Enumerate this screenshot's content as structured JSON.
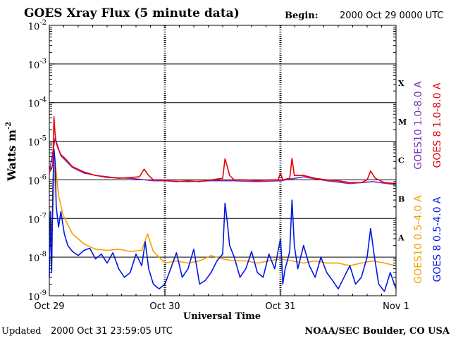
{
  "header": {
    "title": "GOES Xray Flux (5 minute data)",
    "begin_label": "Begin:",
    "begin_value": "2000 Oct 29 0000 UTC"
  },
  "footer": {
    "updated_label": "Updated",
    "updated_value": "2000 Oct 31 23:59:05 UTC",
    "credit": "NOAA/SEC Boulder, CO USA"
  },
  "chart_data": {
    "type": "line",
    "title": "GOES Xray Flux (5 minute data)",
    "xlabel": "Universal Time",
    "ylabel": "Watts m",
    "ylabel_sup": "-2",
    "y_scale": "log",
    "ylim": [
      1e-09,
      0.01
    ],
    "y_ticks": [
      {
        "base": "10",
        "exp": "-9",
        "value": 1e-09
      },
      {
        "base": "10",
        "exp": "-8",
        "value": 1e-08
      },
      {
        "base": "10",
        "exp": "-7",
        "value": 1e-07
      },
      {
        "base": "10",
        "exp": "-6",
        "value": 1e-06
      },
      {
        "base": "10",
        "exp": "-5",
        "value": 1e-05
      },
      {
        "base": "10",
        "exp": "-4",
        "value": 0.0001
      },
      {
        "base": "10",
        "exp": "-3",
        "value": 0.001
      },
      {
        "base": "10",
        "exp": "-2",
        "value": 0.01
      }
    ],
    "xlim_days": [
      0,
      3
    ],
    "x_ticks": [
      {
        "label": "Oct 29",
        "day": 0
      },
      {
        "label": "Oct 30",
        "day": 1
      },
      {
        "label": "Oct 31",
        "day": 2
      },
      {
        "label": "Nov 1",
        "day": 3
      }
    ],
    "flare_classes": [
      {
        "label": "X",
        "value": 0.00032
      },
      {
        "label": "M",
        "value": 3.2e-05
      },
      {
        "label": "C",
        "value": 3.2e-06
      },
      {
        "label": "B",
        "value": 3.2e-07
      },
      {
        "label": "A",
        "value": 3.2e-08
      }
    ],
    "grid": true,
    "legend_placement": "right",
    "series": [
      {
        "name": "GOES 8 1.0-8.0 A",
        "color": "#e8000b",
        "x": [
          0,
          0.015,
          0.03,
          0.04,
          0.05,
          0.06,
          0.08,
          0.1,
          0.14,
          0.2,
          0.3,
          0.4,
          0.5,
          0.6,
          0.7,
          0.78,
          0.82,
          0.86,
          0.9,
          0.98,
          1.0,
          1.02,
          1.1,
          1.2,
          1.3,
          1.4,
          1.5,
          1.52,
          1.54,
          1.56,
          1.6,
          1.7,
          1.8,
          1.9,
          1.98,
          2.0,
          2.02,
          2.08,
          2.1,
          2.12,
          2.2,
          2.3,
          2.4,
          2.5,
          2.6,
          2.7,
          2.75,
          2.78,
          2.82,
          2.9,
          3.0
        ],
        "y": [
          1.6e-06,
          1.8e-06,
          2.5e-06,
          4.3e-05,
          1.5e-05,
          9e-06,
          6e-06,
          4.5e-06,
          3.5e-06,
          2.2e-06,
          1.6e-06,
          1.3e-06,
          1.2e-06,
          1.1e-06,
          1.15e-06,
          1.2e-06,
          1.9e-06,
          1.3e-06,
          1e-06,
          1e-06,
          1e-06,
          9.5e-07,
          9e-07,
          9.5e-07,
          9e-07,
          1e-06,
          1.1e-06,
          3.5e-06,
          2.2e-06,
          1.3e-06,
          1e-06,
          1e-06,
          9.5e-07,
          1e-06,
          1e-06,
          1.5e-06,
          1e-06,
          1.1e-06,
          3.6e-06,
          1.3e-06,
          1.3e-06,
          1.1e-06,
          1e-06,
          9.5e-07,
          8.5e-07,
          8.5e-07,
          1e-06,
          1.7e-06,
          1.1e-06,
          8.5e-07,
          8e-07
        ]
      },
      {
        "name": "GOES10 1.0-8.0 A",
        "color": "#7a2fb5",
        "x": [
          0,
          0.05,
          0.1,
          0.2,
          0.3,
          0.5,
          0.7,
          0.9,
          1.0,
          1.2,
          1.4,
          1.6,
          1.8,
          2.0,
          2.2,
          2.4,
          2.6,
          2.8,
          3.0
        ],
        "y": [
          1.5e-06,
          1.2e-05,
          4.2e-06,
          2.1e-06,
          1.5e-06,
          1.15e-06,
          1.1e-06,
          9.5e-07,
          9.5e-07,
          9e-07,
          9.5e-07,
          9.5e-07,
          9e-07,
          9.5e-07,
          1.2e-06,
          9.5e-07,
          8e-07,
          9e-07,
          7.5e-07
        ]
      },
      {
        "name": "GOES10 0.5-4.0 A",
        "color": "#f5a000",
        "x": [
          0,
          0.03,
          0.05,
          0.08,
          0.12,
          0.2,
          0.3,
          0.4,
          0.5,
          0.6,
          0.7,
          0.8,
          0.85,
          0.9,
          1.0,
          1.1,
          1.2,
          1.3,
          1.4,
          1.5,
          1.6,
          1.7,
          1.8,
          1.9,
          2.0,
          2.1,
          2.2,
          2.3,
          2.4,
          2.5,
          2.6,
          2.7,
          2.8,
          2.9,
          3.0
        ],
        "y": [
          1e-08,
          1.2e-07,
          3e-06,
          4e-07,
          1.2e-07,
          4e-08,
          2.2e-08,
          1.6e-08,
          1.5e-08,
          1.6e-08,
          1.4e-08,
          1.5e-08,
          4e-08,
          1.4e-08,
          7e-09,
          8e-09,
          7e-09,
          8e-09,
          1.1e-08,
          9e-09,
          8e-09,
          8e-09,
          7e-09,
          8e-09,
          9e-09,
          8e-09,
          7e-09,
          8e-09,
          7e-09,
          7e-09,
          6e-09,
          7e-09,
          8e-09,
          7e-09,
          6e-09
        ]
      },
      {
        "name": "GOES 8 0.5-4.0 A",
        "color": "#0018e0",
        "x": [
          0,
          0.01,
          0.02,
          0.03,
          0.04,
          0.05,
          0.06,
          0.08,
          0.1,
          0.13,
          0.16,
          0.2,
          0.25,
          0.3,
          0.35,
          0.4,
          0.45,
          0.5,
          0.55,
          0.6,
          0.65,
          0.7,
          0.75,
          0.8,
          0.83,
          0.86,
          0.9,
          0.95,
          1.0,
          1.05,
          1.1,
          1.15,
          1.2,
          1.25,
          1.3,
          1.35,
          1.4,
          1.45,
          1.5,
          1.52,
          1.54,
          1.56,
          1.6,
          1.65,
          1.7,
          1.75,
          1.8,
          1.85,
          1.9,
          1.95,
          2.0,
          2.01,
          2.02,
          2.04,
          2.06,
          2.08,
          2.1,
          2.12,
          2.15,
          2.2,
          2.25,
          2.3,
          2.35,
          2.4,
          2.45,
          2.5,
          2.55,
          2.6,
          2.65,
          2.7,
          2.75,
          2.78,
          2.81,
          2.85,
          2.9,
          2.95,
          3.0
        ],
        "y": [
          3e-09,
          1.5e-07,
          4e-09,
          5e-07,
          6.3e-06,
          3e-06,
          2e-07,
          6e-08,
          1.5e-07,
          4e-08,
          2e-08,
          1.4e-08,
          1.1e-08,
          1.5e-08,
          1.7e-08,
          9e-09,
          1.2e-08,
          7e-09,
          1.3e-08,
          5e-09,
          3e-09,
          4e-09,
          1.2e-08,
          6e-09,
          2.5e-08,
          5e-09,
          2e-09,
          1.5e-09,
          2e-09,
          5e-09,
          1.3e-08,
          3e-09,
          5e-09,
          1.6e-08,
          2e-09,
          2.5e-09,
          4e-09,
          8e-09,
          1.2e-08,
          2.5e-07,
          8e-08,
          2e-08,
          1e-08,
          3e-09,
          5e-09,
          1.4e-08,
          4e-09,
          3e-09,
          1.2e-08,
          5e-09,
          3e-08,
          1e-08,
          2e-09,
          5e-09,
          8e-09,
          1.4e-08,
          3e-07,
          2e-08,
          5e-09,
          2e-08,
          6e-09,
          3e-09,
          1e-08,
          4e-09,
          2.5e-09,
          1.5e-09,
          3e-09,
          6e-09,
          2e-09,
          3e-09,
          1e-08,
          5.5e-08,
          1.2e-08,
          2e-09,
          1.3e-09,
          4e-09,
          1.5e-09
        ]
      }
    ]
  }
}
